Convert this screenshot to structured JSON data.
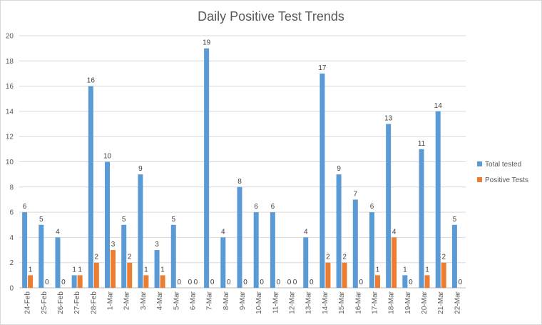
{
  "chart_data": {
    "type": "bar",
    "title": "Daily Positive Test Trends",
    "categories": [
      "24-Feb",
      "25-Feb",
      "26-Feb",
      "27-Feb",
      "28-Feb",
      "1-Mar",
      "2-Mar",
      "3-Mar",
      "4-Mar",
      "5-Mar",
      "6-Mar",
      "7-Mar",
      "8-Mar",
      "9-Mar",
      "10-Mar",
      "11-Mar",
      "12-Mar",
      "13-Mar",
      "14-Mar",
      "15-Mar",
      "16-Mar",
      "17-Mar",
      "18-Mar",
      "19-Mar",
      "20-Mar",
      "21-Mar",
      "22-Mar"
    ],
    "series": [
      {
        "name": "Total tested",
        "color": "#5b9bd5",
        "values": [
          6,
          5,
          4,
          1,
          16,
          10,
          5,
          9,
          3,
          5,
          0,
          19,
          4,
          8,
          6,
          6,
          0,
          4,
          17,
          9,
          7,
          6,
          13,
          1,
          11,
          14,
          5
        ]
      },
      {
        "name": "Positive Tests",
        "color": "#ed7d31",
        "values": [
          1,
          0,
          0,
          1,
          2,
          3,
          2,
          1,
          1,
          0,
          0,
          0,
          0,
          0,
          0,
          0,
          0,
          0,
          2,
          2,
          0,
          1,
          4,
          0,
          1,
          2,
          0
        ]
      }
    ],
    "ylim": [
      0,
      20
    ],
    "yticks": [
      0,
      2,
      4,
      6,
      8,
      10,
      12,
      14,
      16,
      18,
      20
    ],
    "grid": true,
    "legend_position": "right"
  }
}
